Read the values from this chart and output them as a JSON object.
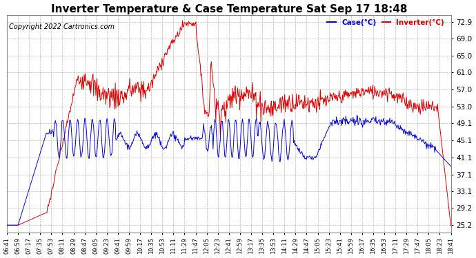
{
  "title": "Inverter Temperature & Case Temperature Sat Sep 17 18:48",
  "copyright": "Copyright 2022 Cartronics.com",
  "legend_case": "Case(°C)",
  "legend_inverter": "Inverter(°C)",
  "y_ticks": [
    25.2,
    29.2,
    33.1,
    37.1,
    41.1,
    45.1,
    49.1,
    53.0,
    57.0,
    61.0,
    65.0,
    69.0,
    72.9
  ],
  "ylim": [
    23.5,
    74.5
  ],
  "background_color": "#ffffff",
  "plot_bg_color": "#ffffff",
  "grid_color": "#aaaaaa",
  "title_fontsize": 11,
  "copyright_fontsize": 7,
  "case_color": "#0000dd",
  "inverter_color": "#dd0000",
  "x_tick_labels": [
    "06:41",
    "06:59",
    "07:17",
    "07:35",
    "07:53",
    "08:11",
    "08:29",
    "08:47",
    "09:05",
    "09:23",
    "09:41",
    "09:59",
    "10:17",
    "10:35",
    "10:53",
    "11:11",
    "11:29",
    "11:47",
    "12:05",
    "12:23",
    "12:41",
    "12:59",
    "13:17",
    "13:35",
    "13:53",
    "14:11",
    "14:29",
    "14:47",
    "15:05",
    "15:23",
    "15:41",
    "15:59",
    "16:17",
    "16:35",
    "16:53",
    "17:11",
    "17:29",
    "17:47",
    "18:05",
    "18:23",
    "18:41"
  ]
}
